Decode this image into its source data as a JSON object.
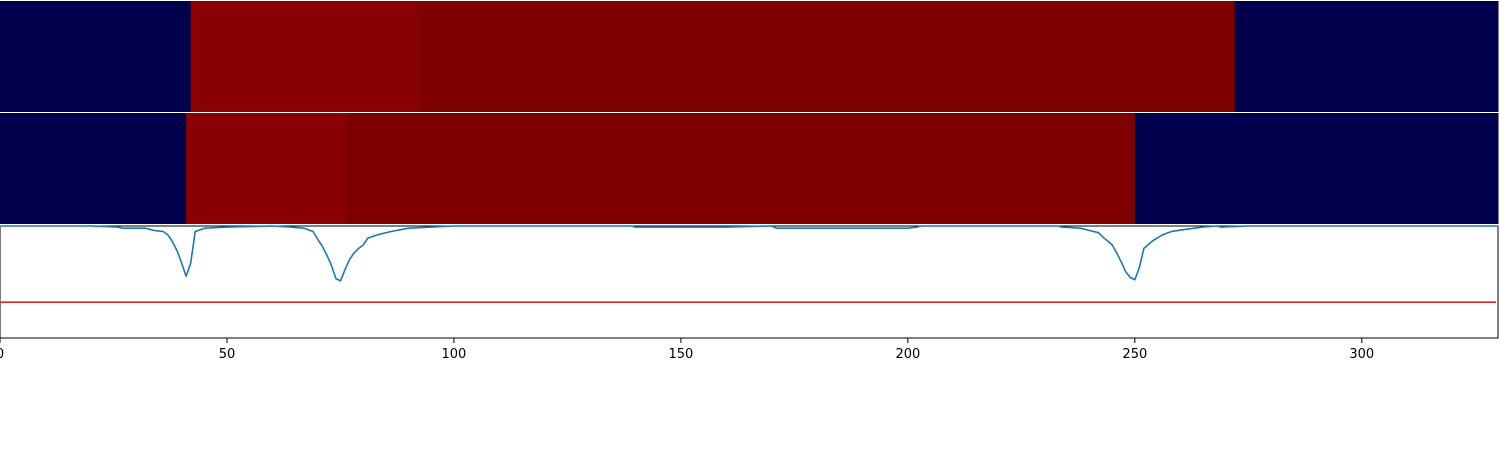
{
  "chart_data": {
    "type": "heatmap",
    "x_ticks": [
      0,
      50,
      100,
      150,
      200,
      250,
      300
    ],
    "xlim": [
      0,
      330
    ],
    "colors": {
      "background_state": "#00004d",
      "state_a": "#8a0000",
      "state_b": "#7d0000",
      "state_c": "#7f0000",
      "line": "#1f77b4",
      "threshold": "#d62728"
    },
    "rows": [
      {
        "segments": [
          {
            "start": 0,
            "end": 42,
            "color": "#00004d"
          },
          {
            "start": 42,
            "end": 92,
            "color": "#8a0000"
          },
          {
            "start": 92,
            "end": 272,
            "color": "#7d0000"
          },
          {
            "start": 272,
            "end": 330,
            "color": "#00004d"
          }
        ]
      },
      {
        "segments": [
          {
            "start": 0,
            "end": 41,
            "color": "#00004d"
          },
          {
            "start": 41,
            "end": 76,
            "color": "#8a0000"
          },
          {
            "start": 76,
            "end": 250,
            "color": "#7f0000"
          },
          {
            "start": 250,
            "end": 330,
            "color": "#00004d"
          }
        ]
      }
    ],
    "line_series": {
      "ylim": [
        -1.0,
        0.0
      ],
      "threshold": -0.68,
      "points": [
        [
          0,
          0.0
        ],
        [
          10,
          0.0
        ],
        [
          20,
          0.0
        ],
        [
          26,
          -0.01
        ],
        [
          27,
          -0.02
        ],
        [
          30,
          -0.02
        ],
        [
          32,
          -0.02
        ],
        [
          34,
          -0.04
        ],
        [
          36,
          -0.05
        ],
        [
          37,
          -0.08
        ],
        [
          38,
          -0.14
        ],
        [
          39,
          -0.22
        ],
        [
          40,
          -0.33
        ],
        [
          41,
          -0.45
        ],
        [
          42,
          -0.33
        ],
        [
          43,
          -0.05
        ],
        [
          45,
          -0.02
        ],
        [
          50,
          -0.01
        ],
        [
          60,
          0.0
        ],
        [
          64,
          -0.01
        ],
        [
          67,
          -0.02
        ],
        [
          69,
          -0.05
        ],
        [
          70,
          -0.12
        ],
        [
          71,
          -0.18
        ],
        [
          72,
          -0.26
        ],
        [
          73,
          -0.35
        ],
        [
          74,
          -0.47
        ],
        [
          75,
          -0.49
        ],
        [
          76,
          -0.39
        ],
        [
          77,
          -0.3
        ],
        [
          78,
          -0.24
        ],
        [
          79,
          -0.2
        ],
        [
          80,
          -0.17
        ],
        [
          81,
          -0.11
        ],
        [
          83,
          -0.08
        ],
        [
          86,
          -0.05
        ],
        [
          90,
          -0.02
        ],
        [
          100,
          0.0
        ],
        [
          120,
          0.0
        ],
        [
          139,
          0.0
        ],
        [
          140,
          -0.01
        ],
        [
          160,
          -0.01
        ],
        [
          170,
          0.0
        ],
        [
          171,
          -0.02
        ],
        [
          180,
          -0.02
        ],
        [
          190,
          -0.02
        ],
        [
          200,
          -0.02
        ],
        [
          202,
          -0.01
        ],
        [
          203,
          0.0
        ],
        [
          215,
          0.0
        ],
        [
          233,
          0.0
        ],
        [
          234,
          -0.01
        ],
        [
          238,
          -0.02
        ],
        [
          240,
          -0.04
        ],
        [
          242,
          -0.06
        ],
        [
          243,
          -0.1
        ],
        [
          245,
          -0.17
        ],
        [
          246,
          -0.24
        ],
        [
          247,
          -0.32
        ],
        [
          248,
          -0.41
        ],
        [
          249,
          -0.46
        ],
        [
          250,
          -0.48
        ],
        [
          251,
          -0.37
        ],
        [
          252,
          -0.2
        ],
        [
          254,
          -0.13
        ],
        [
          256,
          -0.08
        ],
        [
          258,
          -0.05
        ],
        [
          261,
          -0.03
        ],
        [
          265,
          -0.01
        ],
        [
          268,
          0.0
        ],
        [
          269,
          -0.01
        ],
        [
          275,
          0.0
        ],
        [
          300,
          0.0
        ],
        [
          330,
          0.0
        ]
      ]
    }
  }
}
